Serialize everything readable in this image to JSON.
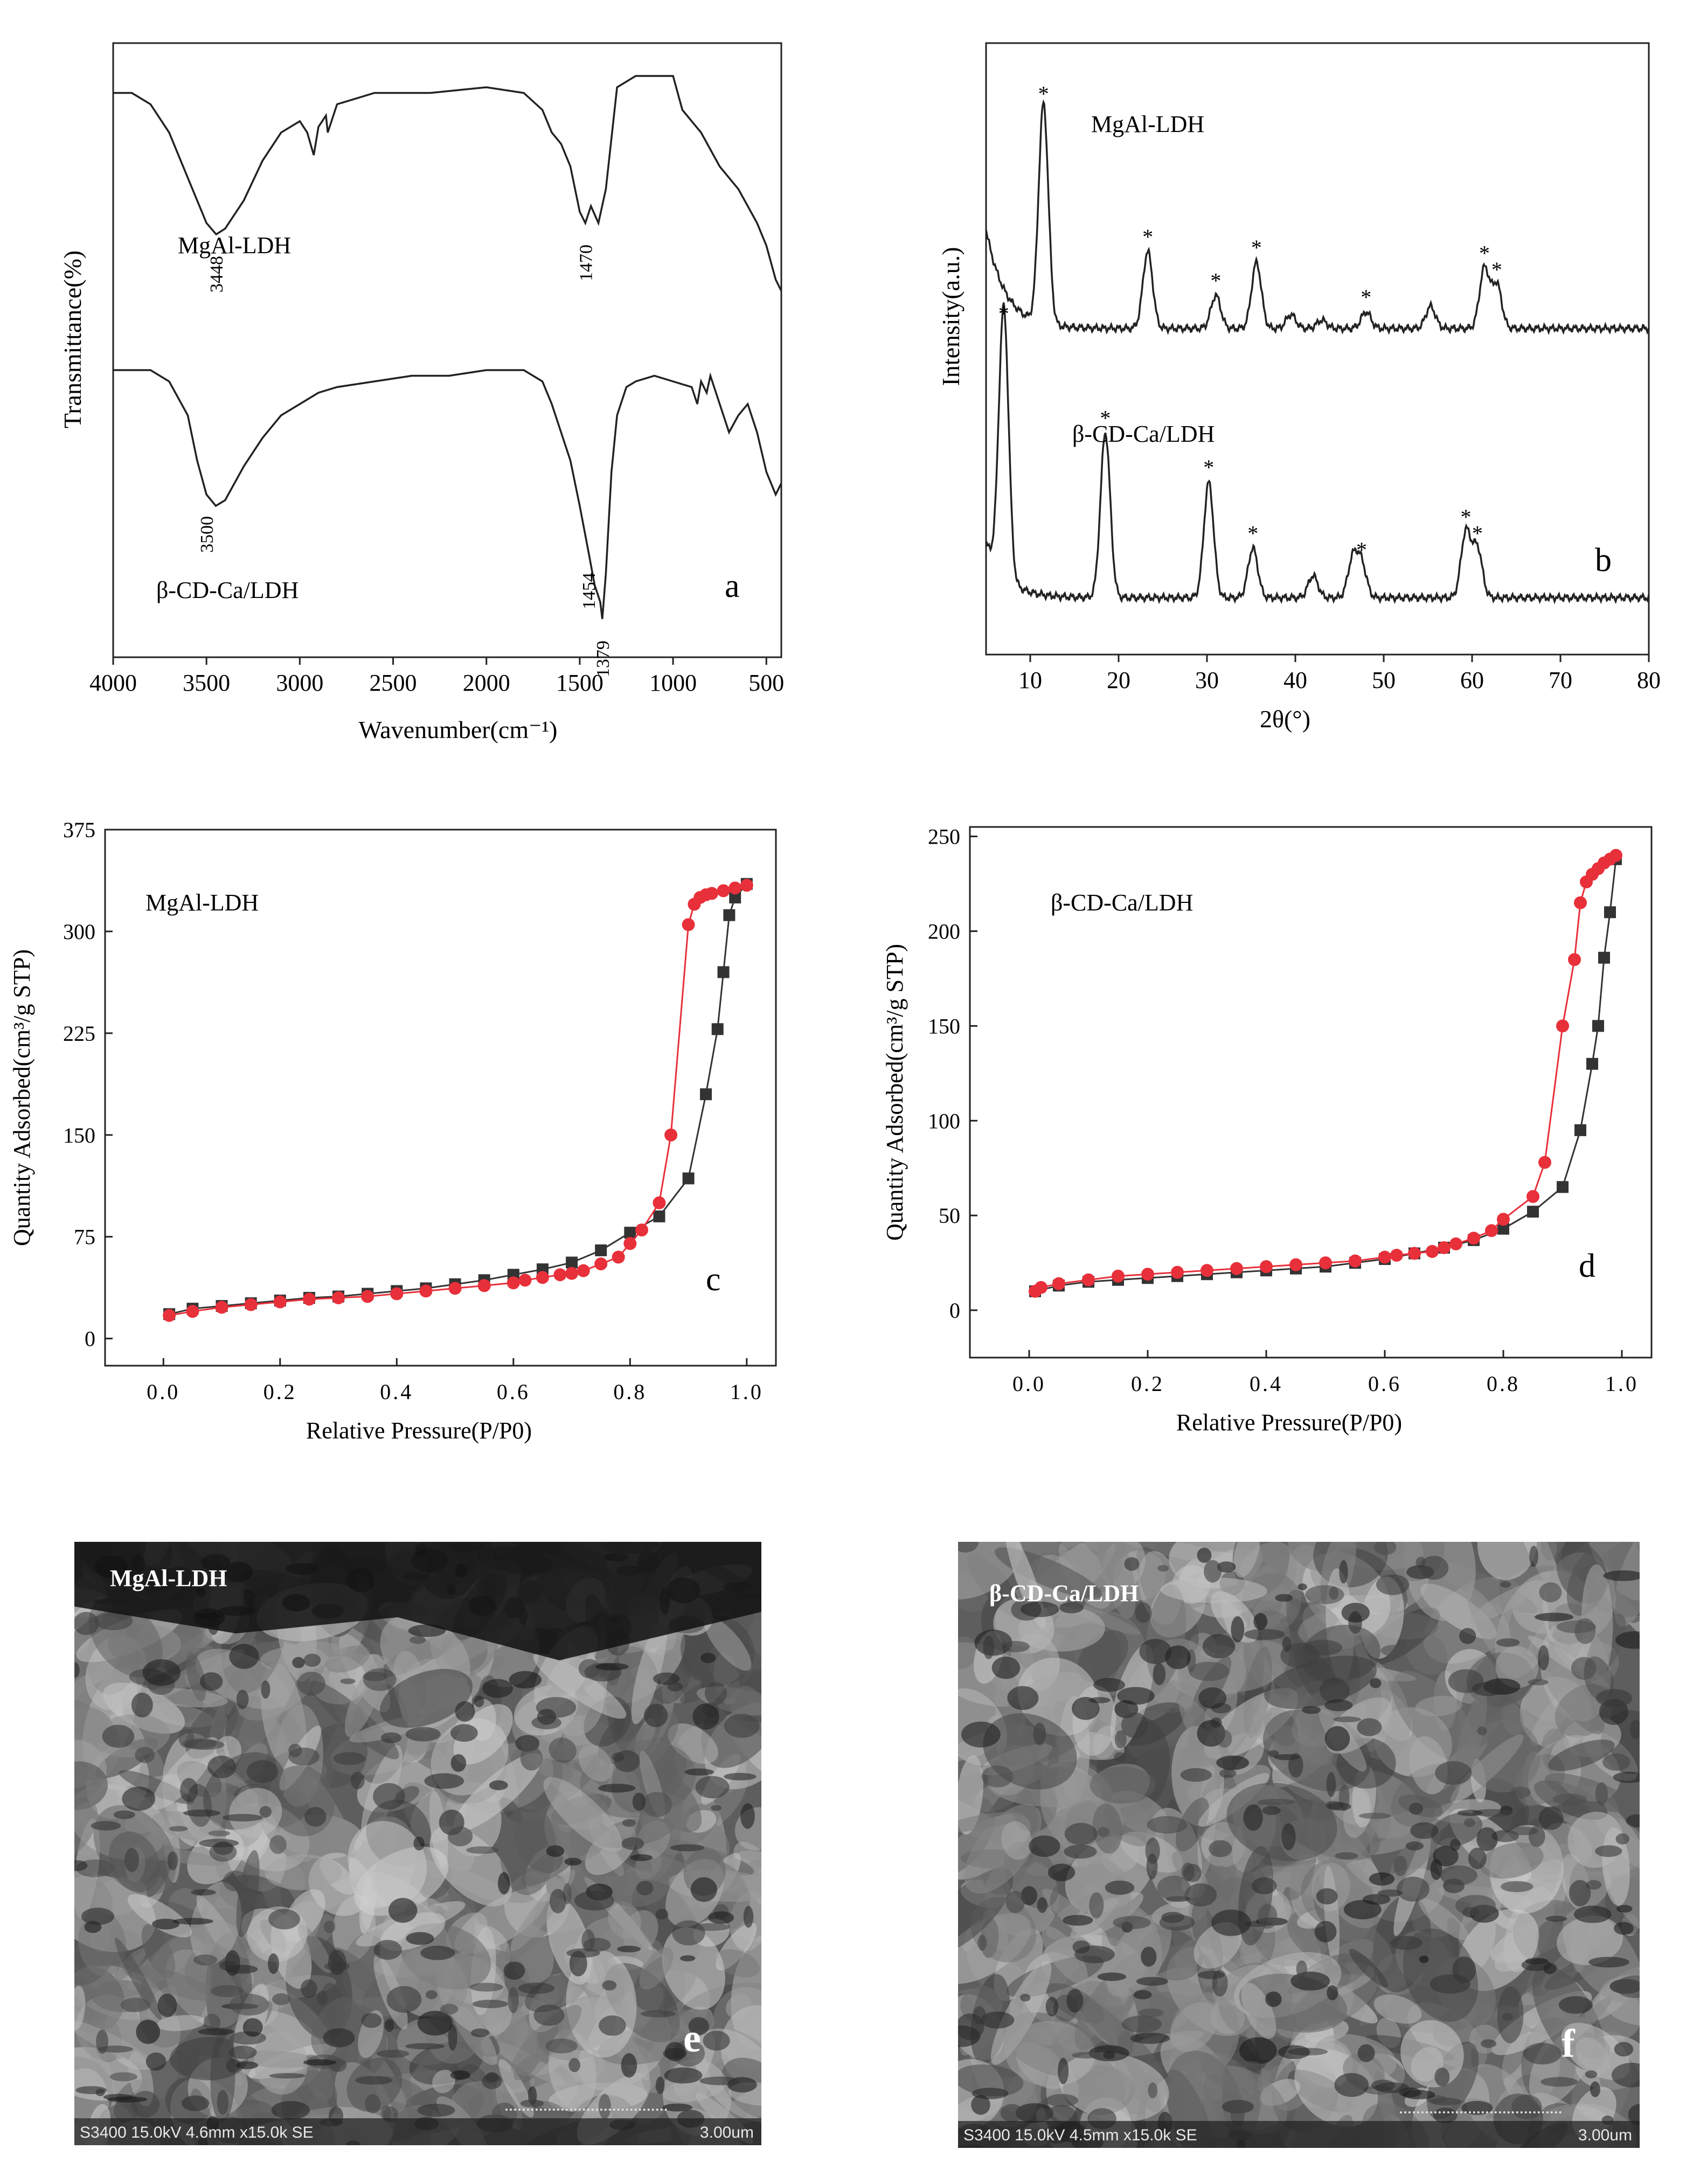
{
  "colors": {
    "axis": "#222222",
    "desorption": "#e8303a",
    "adsorption": "#333333",
    "sem_dark": "#262626"
  },
  "chart_data": [
    {
      "id": "a",
      "type": "line",
      "title": "",
      "xlabel": "Wavenumber(cm⁻¹)",
      "ylabel": "Transmittance(%)",
      "xlim": [
        4000,
        420
      ],
      "xticks": [
        4000,
        3500,
        3000,
        2500,
        2000,
        1500,
        1000,
        500
      ],
      "panel_label": "a",
      "series": [
        {
          "name": "MgAl-LDH",
          "label": "MgAl-LDH",
          "points": [
            [
              4000,
              0.95
            ],
            [
              3900,
              0.95
            ],
            [
              3800,
              0.93
            ],
            [
              3700,
              0.88
            ],
            [
              3600,
              0.8
            ],
            [
              3500,
              0.72
            ],
            [
              3448,
              0.7
            ],
            [
              3400,
              0.71
            ],
            [
              3300,
              0.76
            ],
            [
              3200,
              0.83
            ],
            [
              3100,
              0.88
            ],
            [
              3000,
              0.9
            ],
            [
              2960,
              0.88
            ],
            [
              2925,
              0.84
            ],
            [
              2900,
              0.89
            ],
            [
              2860,
              0.91
            ],
            [
              2850,
              0.88
            ],
            [
              2800,
              0.93
            ],
            [
              2600,
              0.95
            ],
            [
              2300,
              0.95
            ],
            [
              2000,
              0.96
            ],
            [
              1800,
              0.95
            ],
            [
              1700,
              0.92
            ],
            [
              1650,
              0.88
            ],
            [
              1600,
              0.86
            ],
            [
              1550,
              0.82
            ],
            [
              1500,
              0.74
            ],
            [
              1470,
              0.72
            ],
            [
              1440,
              0.75
            ],
            [
              1400,
              0.72
            ],
            [
              1360,
              0.78
            ],
            [
              1300,
              0.96
            ],
            [
              1200,
              0.98
            ],
            [
              1100,
              0.98
            ],
            [
              1000,
              0.98
            ],
            [
              950,
              0.92
            ],
            [
              900,
              0.9
            ],
            [
              850,
              0.88
            ],
            [
              800,
              0.85
            ],
            [
              750,
              0.82
            ],
            [
              700,
              0.8
            ],
            [
              650,
              0.78
            ],
            [
              600,
              0.75
            ],
            [
              550,
              0.72
            ],
            [
              500,
              0.68
            ],
            [
              450,
              0.62
            ],
            [
              420,
              0.6
            ]
          ],
          "annotations": [
            {
              "x": 3448,
              "text": "3448"
            },
            {
              "x": 1470,
              "text": "1470"
            }
          ]
        },
        {
          "name": "β-CD-Ca/LDH",
          "label": "β-CD-Ca/LDH",
          "points": [
            [
              4000,
              0.46
            ],
            [
              3800,
              0.46
            ],
            [
              3700,
              0.44
            ],
            [
              3600,
              0.38
            ],
            [
              3550,
              0.3
            ],
            [
              3500,
              0.24
            ],
            [
              3450,
              0.22
            ],
            [
              3400,
              0.23
            ],
            [
              3300,
              0.29
            ],
            [
              3200,
              0.34
            ],
            [
              3100,
              0.38
            ],
            [
              3000,
              0.4
            ],
            [
              2900,
              0.42
            ],
            [
              2800,
              0.43
            ],
            [
              2600,
              0.44
            ],
            [
              2400,
              0.45
            ],
            [
              2200,
              0.45
            ],
            [
              2000,
              0.46
            ],
            [
              1800,
              0.46
            ],
            [
              1700,
              0.44
            ],
            [
              1650,
              0.4
            ],
            [
              1600,
              0.35
            ],
            [
              1550,
              0.3
            ],
            [
              1500,
              0.22
            ],
            [
              1454,
              0.14
            ],
            [
              1420,
              0.08
            ],
            [
              1390,
              0.05
            ],
            [
              1379,
              0.02
            ],
            [
              1360,
              0.1
            ],
            [
              1330,
              0.28
            ],
            [
              1300,
              0.38
            ],
            [
              1250,
              0.43
            ],
            [
              1200,
              0.44
            ],
            [
              1100,
              0.45
            ],
            [
              1000,
              0.44
            ],
            [
              900,
              0.43
            ],
            [
              870,
              0.4
            ],
            [
              850,
              0.44
            ],
            [
              820,
              0.42
            ],
            [
              800,
              0.45
            ],
            [
              750,
              0.4
            ],
            [
              700,
              0.35
            ],
            [
              650,
              0.38
            ],
            [
              600,
              0.4
            ],
            [
              550,
              0.35
            ],
            [
              500,
              0.28
            ],
            [
              450,
              0.24
            ],
            [
              420,
              0.26
            ]
          ],
          "annotations": [
            {
              "x": 3500,
              "text": "3500"
            },
            {
              "x": 1454,
              "text": "1454"
            },
            {
              "x": 1379,
              "text": "1379"
            }
          ]
        }
      ]
    },
    {
      "id": "b",
      "type": "line",
      "title": "",
      "xlabel": "2θ(°)",
      "ylabel": "Intensity(a.u.)",
      "xlim": [
        5,
        80
      ],
      "xticks": [
        10,
        20,
        30,
        40,
        50,
        60,
        70,
        80
      ],
      "panel_label": "b",
      "series": [
        {
          "name": "MgAl-LDH",
          "label": "MgAl-LDH",
          "baseline": 0.52,
          "start": [
            5,
            0.7
          ],
          "peaks": [
            [
              11.5,
              0.92
            ],
            [
              23.3,
              0.66
            ],
            [
              31,
              0.58
            ],
            [
              35.6,
              0.64
            ],
            [
              39.5,
              0.545
            ],
            [
              43,
              0.535
            ],
            [
              48,
              0.55
            ],
            [
              55.3,
              0.56
            ],
            [
              61.4,
              0.63
            ],
            [
              62.8,
              0.6
            ]
          ],
          "stars": [
            11.5,
            23.3,
            31,
            35.6,
            48,
            61.4,
            62.8
          ]
        },
        {
          "name": "β-CD-Ca/LDH",
          "label": "β-CD-Ca/LDH",
          "baseline": 0.03,
          "start": [
            5,
            0.13
          ],
          "peaks": [
            [
              7,
              0.52
            ],
            [
              18.5,
              0.33
            ],
            [
              30.2,
              0.24
            ],
            [
              35.2,
              0.12
            ],
            [
              42,
              0.07
            ],
            [
              46.5,
              0.1
            ],
            [
              47.5,
              0.09
            ],
            [
              59.3,
              0.15
            ],
            [
              60.6,
              0.12
            ]
          ],
          "stars": [
            7,
            18.5,
            30.2,
            35.2,
            47.5,
            59.3,
            60.6
          ]
        }
      ]
    },
    {
      "id": "c",
      "type": "scatter",
      "title": "MgAl-LDH",
      "xlabel": "Relative Pressure(P/P0)",
      "ylabel": "Quantity Adsorbed(cm³/g STP)",
      "xlim": [
        -0.1,
        1.05
      ],
      "ylim": [
        -20,
        375
      ],
      "xticks": [
        0.0,
        0.2,
        0.4,
        0.6,
        0.8,
        1.0
      ],
      "xtick_labels": [
        "0.0",
        "0.2",
        "0.4",
        "0.6",
        "0.8",
        "1.0"
      ],
      "yticks": [
        0,
        75,
        150,
        225,
        300,
        375
      ],
      "panel_label": "c",
      "series": [
        {
          "name": "adsorption",
          "marker": "square",
          "color_key": "adsorption",
          "x": [
            0.01,
            0.05,
            0.1,
            0.15,
            0.2,
            0.25,
            0.3,
            0.35,
            0.4,
            0.45,
            0.5,
            0.55,
            0.6,
            0.65,
            0.7,
            0.75,
            0.8,
            0.85,
            0.9,
            0.93,
            0.95,
            0.96,
            0.97,
            0.98,
            1.0
          ],
          "y": [
            18,
            22,
            24,
            26,
            28,
            30,
            31,
            33,
            35,
            37,
            40,
            43,
            47,
            51,
            56,
            65,
            78,
            90,
            118,
            180,
            228,
            270,
            312,
            325,
            335
          ]
        },
        {
          "name": "desorption",
          "marker": "circle",
          "color_key": "desorption",
          "x": [
            1.0,
            0.98,
            0.96,
            0.94,
            0.93,
            0.92,
            0.91,
            0.9,
            0.87,
            0.85,
            0.82,
            0.8,
            0.78,
            0.75,
            0.72,
            0.7,
            0.68,
            0.65,
            0.62,
            0.6,
            0.55,
            0.5,
            0.45,
            0.4,
            0.35,
            0.3,
            0.25,
            0.2,
            0.15,
            0.1,
            0.05,
            0.01
          ],
          "y": [
            334,
            332,
            330,
            328,
            327,
            325,
            320,
            305,
            150,
            100,
            80,
            70,
            60,
            55,
            50,
            48,
            47,
            45,
            43,
            41,
            39,
            37,
            35,
            33,
            31,
            30,
            29,
            27,
            25,
            23,
            20,
            17
          ]
        }
      ]
    },
    {
      "id": "d",
      "type": "scatter",
      "title": "β-CD-Ca/LDH",
      "xlabel": "Relative Pressure(P/P0)",
      "ylabel": "Quantity Adsorbed(cm³/g STP)",
      "xlim": [
        -0.1,
        1.05
      ],
      "ylim": [
        -25,
        255
      ],
      "xticks": [
        0.0,
        0.2,
        0.4,
        0.6,
        0.8,
        1.0
      ],
      "xtick_labels": [
        "0.0",
        "0.2",
        "0.4",
        "0.6",
        "0.8",
        "1.0"
      ],
      "yticks": [
        0,
        50,
        100,
        150,
        200,
        250
      ],
      "panel_label": "d",
      "series": [
        {
          "name": "adsorption",
          "marker": "square",
          "color_key": "adsorption",
          "x": [
            0.01,
            0.05,
            0.1,
            0.15,
            0.2,
            0.25,
            0.3,
            0.35,
            0.4,
            0.45,
            0.5,
            0.55,
            0.6,
            0.65,
            0.7,
            0.75,
            0.8,
            0.85,
            0.9,
            0.93,
            0.95,
            0.96,
            0.97,
            0.98,
            0.99
          ],
          "y": [
            10,
            13,
            15,
            16,
            17,
            18,
            19,
            20,
            21,
            22,
            23,
            25,
            27,
            30,
            33,
            37,
            43,
            52,
            65,
            95,
            130,
            150,
            186,
            210,
            238
          ]
        },
        {
          "name": "desorption",
          "marker": "circle",
          "color_key": "desorption",
          "x": [
            0.99,
            0.98,
            0.97,
            0.96,
            0.95,
            0.94,
            0.93,
            0.92,
            0.9,
            0.87,
            0.85,
            0.8,
            0.78,
            0.75,
            0.72,
            0.7,
            0.68,
            0.65,
            0.62,
            0.6,
            0.55,
            0.5,
            0.45,
            0.4,
            0.35,
            0.3,
            0.25,
            0.2,
            0.15,
            0.1,
            0.05,
            0.02,
            0.01
          ],
          "y": [
            240,
            238,
            236,
            233,
            230,
            226,
            215,
            185,
            150,
            78,
            60,
            48,
            42,
            38,
            35,
            33,
            31,
            30,
            29,
            28,
            26,
            25,
            24,
            23,
            22,
            21,
            20,
            19,
            18,
            16,
            14,
            12,
            10
          ]
        }
      ]
    }
  ],
  "sem_images": [
    {
      "id": "e",
      "title": "MgAl-LDH",
      "panel_label": "e",
      "info": "S3400 15.0kV 4.6mm x15.0k SE",
      "scale": "3.00um"
    },
    {
      "id": "f",
      "title": "β-CD-Ca/LDH",
      "panel_label": "f",
      "info": "S3400 15.0kV 4.5mm x15.0k SE",
      "scale": "3.00um"
    }
  ]
}
